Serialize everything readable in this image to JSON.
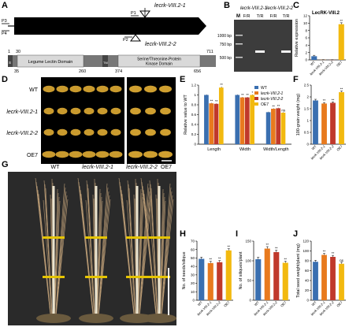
{
  "figure": {
    "panel_letters": [
      "A",
      "B",
      "C",
      "D",
      "E",
      "F",
      "G",
      "H",
      "I",
      "J"
    ],
    "colors": {
      "wt": "#3a6fb0",
      "m1": "#e87a1e",
      "m2": "#c0392b",
      "oe": "#f2b90f"
    },
    "genotypes": [
      "WT",
      "lecrk-VIII.2-1",
      "lecrk-VIII.2-2",
      "OE7"
    ]
  },
  "panel_a": {
    "primers": [
      "P1",
      "P2",
      "P3",
      "P4"
    ],
    "insertions": [
      "lecrk-VIII.2-1",
      "lecrk-VIII.2-2"
    ],
    "domains": [
      {
        "label": "Legume Lectin Domain",
        "start": 35,
        "end": 260
      },
      {
        "label": "Serine/Threonine-Protein Kinase Domain",
        "start": 374,
        "end": 656
      }
    ],
    "small_boxes": [
      "S",
      "TM"
    ],
    "positions_top": [
      "1",
      "30",
      "711"
    ],
    "positions_bottom": [
      "35",
      "260",
      "374",
      "656"
    ]
  },
  "panel_b": {
    "marker_label": "M",
    "lane_groups": [
      "lecrk-VIII.2-1",
      "lecrk-VIII.2-2"
    ],
    "lane_labels": [
      "F/R",
      "T/R",
      "F/R",
      "T/R"
    ],
    "size_labels": [
      "1000 bp",
      "750 bp",
      "500 bp"
    ]
  },
  "panel_d": {
    "row_labels": [
      "WT",
      "lecrk-VIII.2-1",
      "lecrk-VIII.2-2",
      "OE7"
    ]
  },
  "panel_g": {
    "labels": [
      "WT",
      "lecrk-VIII.2-1",
      "lecrk-VIII.2-2",
      "OE7"
    ]
  },
  "chart_data": [
    {
      "panel": "C",
      "type": "bar",
      "title": "LecRK-VIII.2",
      "ylabel": "Relative expression",
      "categories": [
        "WT",
        "lecrk-VIII.2-1",
        "lecrk-VIII.2-2",
        "OE7"
      ],
      "values": [
        1.0,
        0.05,
        0.04,
        9.7
      ],
      "errors": [
        0.25,
        0.02,
        0.02,
        0.4
      ],
      "ylim": [
        0,
        12
      ],
      "yticks": [
        0,
        2,
        4,
        6,
        8,
        10,
        12
      ],
      "significance": [
        "",
        "",
        "",
        "**"
      ]
    },
    {
      "panel": "E",
      "type": "bar",
      "ylabel": "Relative value to WT",
      "categories": [
        "Length",
        "Width",
        "Width/Length"
      ],
      "series": [
        {
          "name": "WT",
          "values": [
            1.0,
            1.0,
            0.65
          ]
        },
        {
          "name": "lecrk-VIII.2-1",
          "values": [
            0.83,
            0.95,
            0.72
          ]
        },
        {
          "name": "lecrk-VIII.2-2",
          "values": [
            0.82,
            0.95,
            0.73
          ]
        },
        {
          "name": "OE7",
          "values": [
            1.15,
            1.0,
            0.64
          ]
        }
      ],
      "errors": [
        [
          0.01,
          0.01,
          0.01
        ],
        [
          0.01,
          0.01,
          0.01
        ],
        [
          0.01,
          0.01,
          0.01
        ],
        [
          0.02,
          0.01,
          0.01
        ]
      ],
      "significance": [
        [
          "",
          "",
          ""
        ],
        [
          "**",
          "**",
          "**"
        ],
        [
          "**",
          "**",
          "**"
        ],
        [
          "**",
          "*",
          "ns"
        ]
      ],
      "ylim": [
        0.0,
        1.2
      ],
      "yticks": [
        0.0,
        0.2,
        0.4,
        0.6,
        0.8,
        1.0,
        1.2
      ],
      "legend": "top-right"
    },
    {
      "panel": "F",
      "type": "bar",
      "ylabel": "100-grain weight (mg)",
      "categories": [
        "WT",
        "lecrk-VIII.2-1",
        "lecrk-VIII.2-2",
        "OE7"
      ],
      "values": [
        1.85,
        1.72,
        1.75,
        2.2
      ],
      "errors": [
        0.05,
        0.04,
        0.04,
        0.05
      ],
      "significance": [
        "",
        "**",
        "**",
        "**"
      ],
      "ylim": [
        0.0,
        2.5
      ],
      "yticks": [
        0.0,
        0.5,
        1.0,
        1.5,
        2.0,
        2.5
      ]
    },
    {
      "panel": "H",
      "type": "bar",
      "ylabel": "No. of seeds/silique",
      "categories": [
        "WT",
        "lecrk-VIII.2-1",
        "lecrk-VIII.2-2",
        "OE7"
      ],
      "values": [
        49,
        44,
        45,
        59
      ],
      "errors": [
        2,
        2,
        2,
        2
      ],
      "significance": [
        "",
        "**",
        "**",
        "**"
      ],
      "ylim": [
        0,
        70
      ],
      "yticks": [
        0,
        10,
        20,
        30,
        40,
        50,
        60,
        70
      ]
    },
    {
      "panel": "I",
      "type": "bar",
      "ylabel": "No. of siliques/plant",
      "categories": [
        "WT",
        "lecrk-VIII.2-1",
        "lecrk-VIII.2-2",
        "OE7"
      ],
      "values": [
        104,
        131,
        122,
        95
      ],
      "errors": [
        5,
        5,
        5,
        4
      ],
      "significance": [
        "",
        "**",
        "**",
        "**"
      ],
      "ylim": [
        0,
        150
      ],
      "yticks": [
        0,
        50,
        100,
        150
      ]
    },
    {
      "panel": "J",
      "type": "bar",
      "ylabel": "Total seed weight/plant (mg)",
      "categories": [
        "WT",
        "lecrk-VIII.2-1",
        "lecrk-VIII.2-2",
        "OE7"
      ],
      "values": [
        78,
        92,
        88,
        74
      ],
      "errors": [
        3,
        3,
        3,
        3
      ],
      "significance": [
        "",
        "**",
        "**",
        "ns"
      ],
      "ylim": [
        0,
        120
      ],
      "yticks": [
        0,
        20,
        40,
        60,
        80,
        100,
        120
      ]
    }
  ]
}
